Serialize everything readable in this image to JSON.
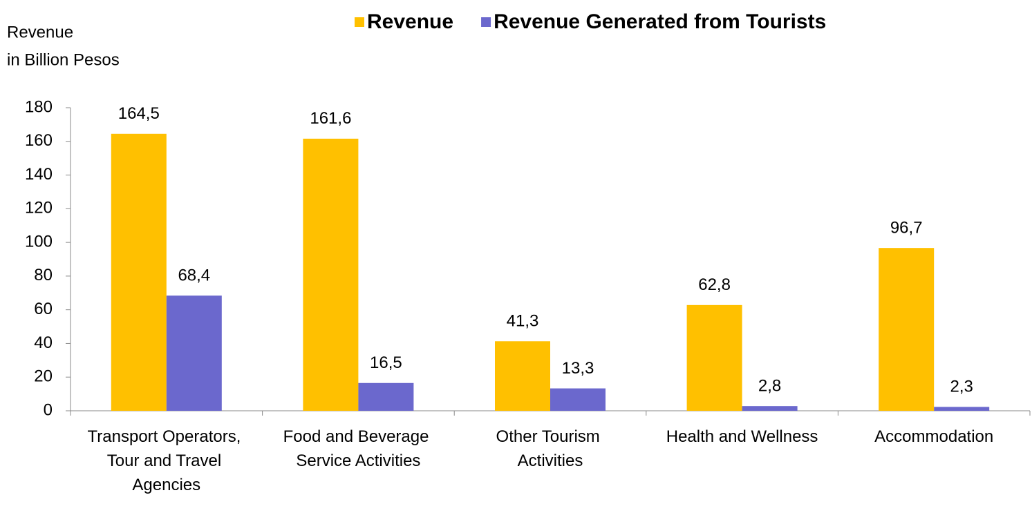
{
  "chart_data": {
    "type": "bar",
    "y_label": [
      "Revenue",
      "in Billion Pesos"
    ],
    "categories": [
      "Transport Operators, Tour and Travel Agencies",
      "Food and Beverage Service Activities",
      "Other Tourism Activities",
      "Health and Wellness",
      "Accommodation"
    ],
    "series": [
      {
        "name": "Revenue",
        "color": "#ffc000",
        "values": [
          164.5,
          161.6,
          41.3,
          62.8,
          96.7
        ],
        "value_labels": [
          "164,5",
          "161,6",
          "41,3",
          "62,8",
          "96,7"
        ]
      },
      {
        "name": "Revenue Generated from Tourists",
        "color": "#6b68cd",
        "values": [
          68.4,
          16.5,
          13.3,
          2.8,
          2.3
        ],
        "value_labels": [
          "68,4",
          "16,5",
          "13,3",
          "2,8",
          "2,3"
        ]
      }
    ],
    "ylim": [
      0,
      180
    ],
    "yticks": [
      0,
      20,
      40,
      60,
      80,
      100,
      120,
      140,
      160,
      180
    ],
    "legend": "top",
    "grid": false
  }
}
